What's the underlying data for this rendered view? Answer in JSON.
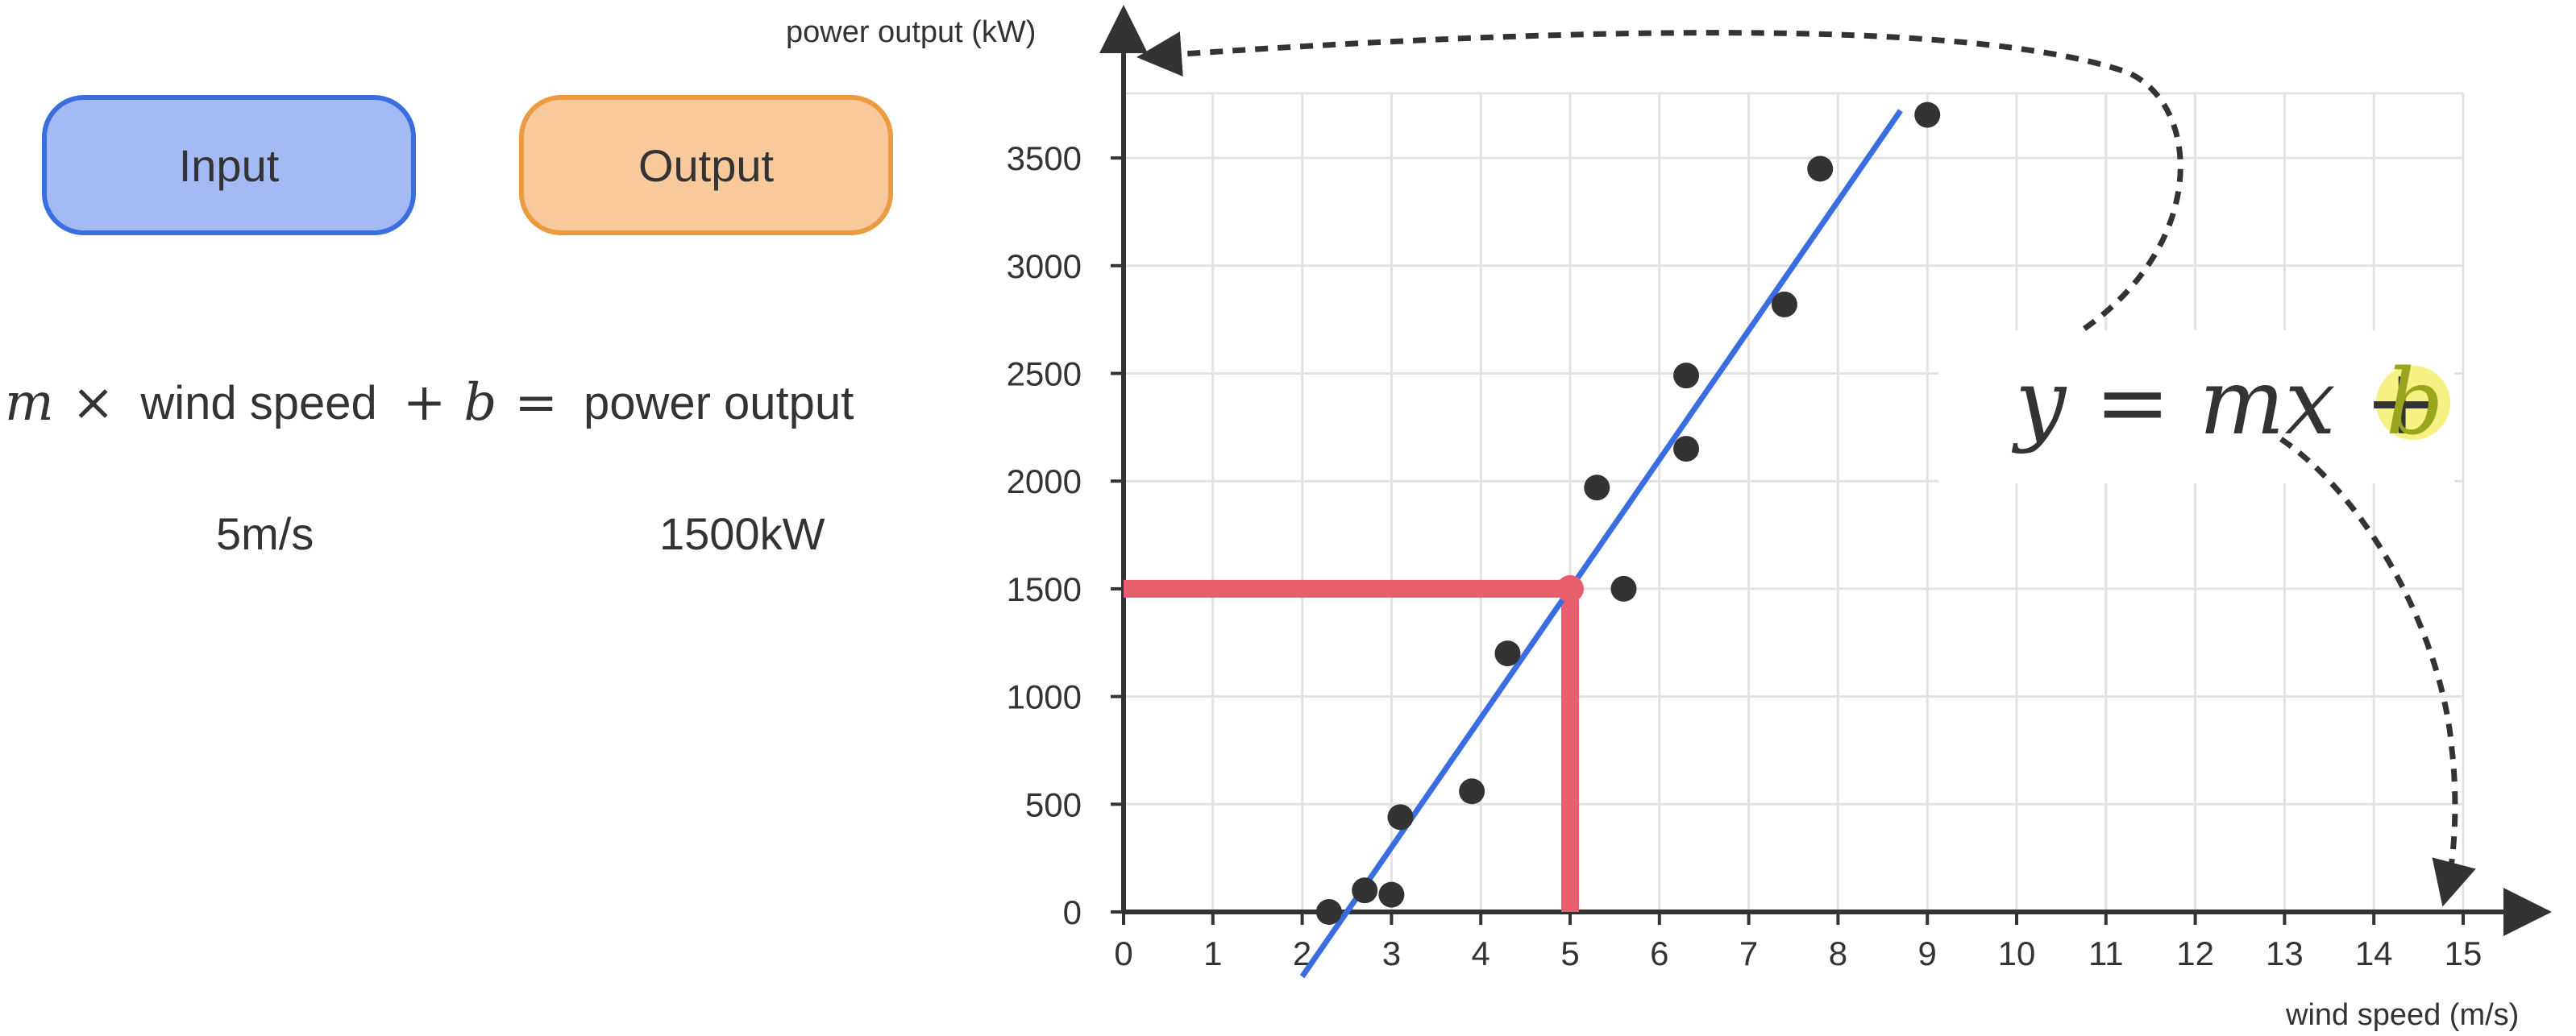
{
  "left_panel": {
    "input_label": "Input",
    "output_label": "Output",
    "input_color": "#a3baf5",
    "output_color": "#f7c99b",
    "equation": {
      "m": "m",
      "times": "×",
      "term": "wind speed",
      "plus": "+",
      "b": "b",
      "equals": "=",
      "result": "power output"
    },
    "example_input": "5m/s",
    "example_output": "1500kW"
  },
  "chart_data": {
    "type": "scatter",
    "xlabel": "wind speed (m/s)",
    "ylabel": "power output (kW)",
    "xlim": [
      0,
      15
    ],
    "ylim": [
      0,
      3800
    ],
    "x_ticks": [
      0,
      1,
      2,
      3,
      4,
      5,
      6,
      7,
      8,
      9,
      10,
      11,
      12,
      13,
      14,
      15
    ],
    "y_ticks": [
      0,
      500,
      1000,
      1500,
      2000,
      2500,
      3000,
      3500
    ],
    "grid": true,
    "points": [
      {
        "x": 2.3,
        "y": 0
      },
      {
        "x": 2.7,
        "y": 100
      },
      {
        "x": 3.0,
        "y": 80
      },
      {
        "x": 3.1,
        "y": 440
      },
      {
        "x": 3.9,
        "y": 560
      },
      {
        "x": 4.3,
        "y": 1200
      },
      {
        "x": 5.3,
        "y": 1970
      },
      {
        "x": 5.6,
        "y": 1500
      },
      {
        "x": 6.3,
        "y": 2490
      },
      {
        "x": 6.3,
        "y": 2150
      },
      {
        "x": 7.4,
        "y": 2820
      },
      {
        "x": 7.8,
        "y": 3450
      },
      {
        "x": 9.0,
        "y": 3700
      }
    ],
    "fit_line": {
      "m": 600,
      "b": -1500,
      "x_start": 2.0,
      "x_end": 8.7,
      "color": "#3a6ee0"
    },
    "highlight": {
      "x": 5,
      "y": 1500,
      "color": "#e8606e"
    },
    "formula": {
      "left": "y = mx + ",
      "b": "b"
    },
    "point_color": "#333333"
  }
}
